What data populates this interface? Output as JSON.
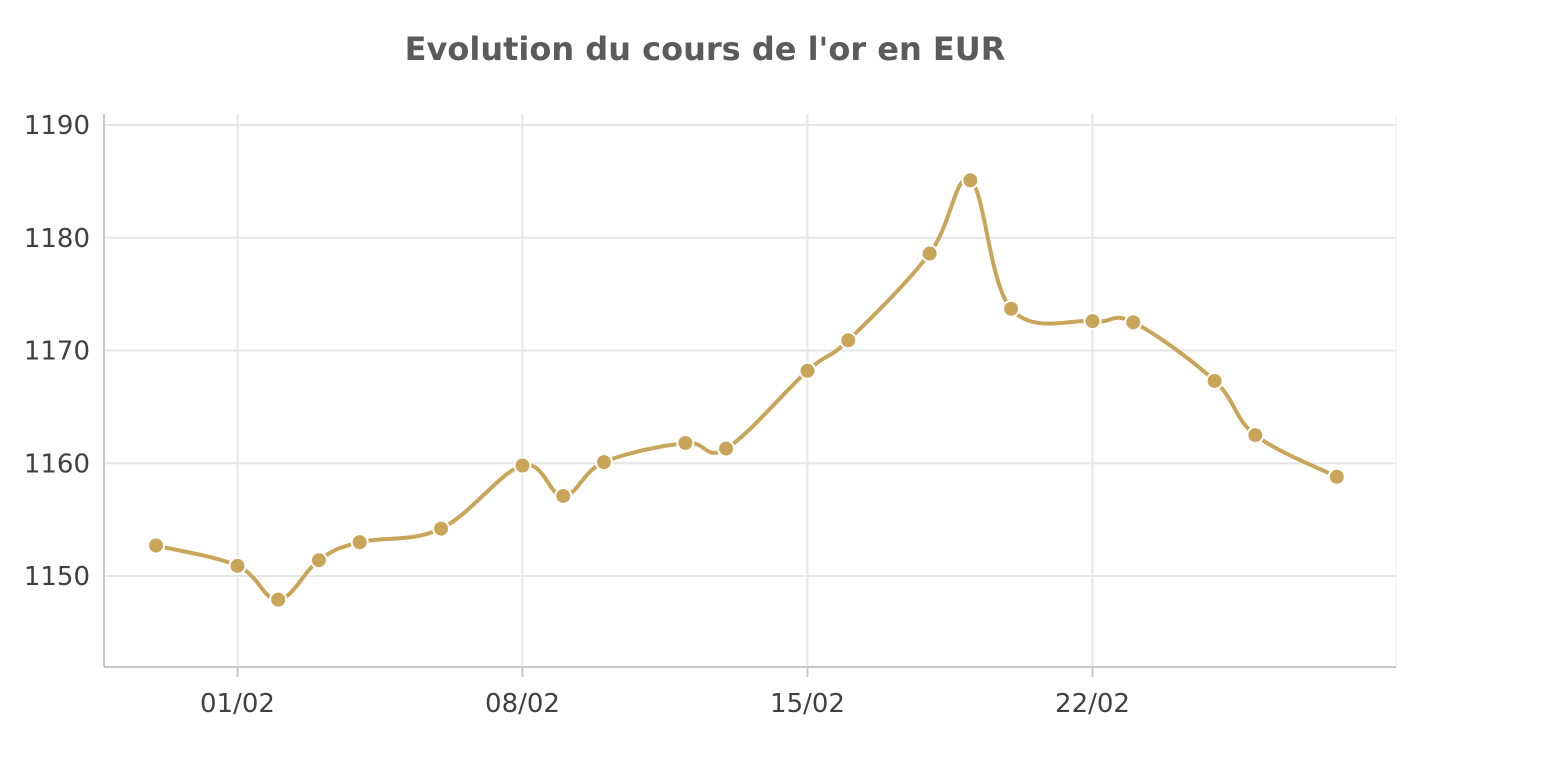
{
  "chart_data": {
    "type": "line",
    "title": "Evolution du cours de l'or en EUR",
    "xlabel": "",
    "ylabel": "",
    "x_ticks": [
      "01/02",
      "08/02",
      "15/02",
      "22/02"
    ],
    "y_ticks": [
      1150,
      1160,
      1170,
      1180,
      1190
    ],
    "ylim": [
      1142,
      1191
    ],
    "grid": true,
    "legend": "none",
    "series": [
      {
        "color": "#c9a55a",
        "points": [
          {
            "x": "2015-01-30",
            "y": 1152.7
          },
          {
            "x": "2015-02-01",
            "y": 1150.9
          },
          {
            "x": "2015-02-02",
            "y": 1147.9
          },
          {
            "x": "2015-02-03",
            "y": 1151.4
          },
          {
            "x": "2015-02-04",
            "y": 1153.0
          },
          {
            "x": "2015-02-06",
            "y": 1154.2
          },
          {
            "x": "2015-02-08",
            "y": 1159.8
          },
          {
            "x": "2015-02-09",
            "y": 1157.1
          },
          {
            "x": "2015-02-10",
            "y": 1160.1
          },
          {
            "x": "2015-02-12",
            "y": 1161.8
          },
          {
            "x": "2015-02-13",
            "y": 1161.3
          },
          {
            "x": "2015-02-15",
            "y": 1168.2
          },
          {
            "x": "2015-02-16",
            "y": 1170.9
          },
          {
            "x": "2015-02-18",
            "y": 1178.6
          },
          {
            "x": "2015-02-19",
            "y": 1185.1
          },
          {
            "x": "2015-02-20",
            "y": 1173.7
          },
          {
            "x": "2015-02-22",
            "y": 1172.6
          },
          {
            "x": "2015-02-23",
            "y": 1172.5
          },
          {
            "x": "2015-02-25",
            "y": 1167.3
          },
          {
            "x": "2015-02-26",
            "y": 1162.5
          },
          {
            "x": "2015-02-28",
            "y": 1158.8
          }
        ]
      }
    ]
  }
}
